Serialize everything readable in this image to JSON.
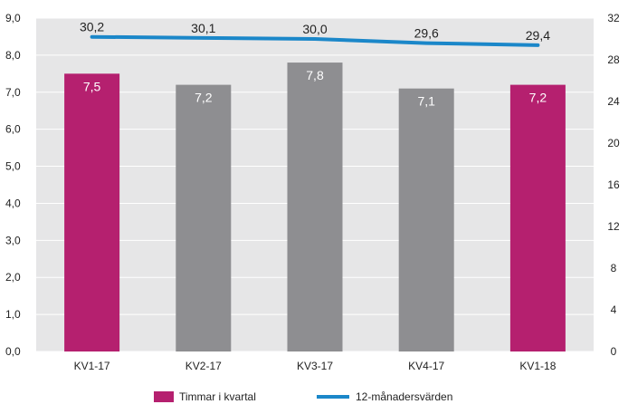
{
  "chart_data": {
    "type": "bar",
    "title": "",
    "categories": [
      "KV1-17",
      "KV2-17",
      "KV3-17",
      "KV4-17",
      "KV1-18"
    ],
    "series": [
      {
        "name": "Timmar i kvartal",
        "kind": "bar",
        "axis": "left",
        "values": [
          7.5,
          7.2,
          7.8,
          7.1,
          7.2
        ],
        "labels": [
          "7,5",
          "7,2",
          "7,8",
          "7,1",
          "7,2"
        ],
        "bar_colors": [
          "#b5206f",
          "#8e8e91",
          "#8e8e91",
          "#8e8e91",
          "#b5206f"
        ],
        "legend_color": "#b5206f"
      },
      {
        "name": "12-månadersvärden",
        "kind": "line",
        "axis": "right",
        "values": [
          30.2,
          30.1,
          30.0,
          29.6,
          29.4
        ],
        "labels": [
          "30,2",
          "30,1",
          "30,0",
          "29,6",
          "29,4"
        ],
        "color": "#1b87c9"
      }
    ],
    "y_left": {
      "range": [
        0,
        9
      ],
      "ticks": [
        0,
        1,
        2,
        3,
        4,
        5,
        6,
        7,
        8,
        9
      ],
      "tick_labels": [
        "0,0",
        "1,0",
        "2,0",
        "3,0",
        "4,0",
        "5,0",
        "6,0",
        "7,0",
        "8,0",
        "9,0"
      ]
    },
    "y_right": {
      "range": [
        0,
        32
      ],
      "ticks": [
        0,
        4,
        8,
        12,
        16,
        20,
        24,
        28,
        32
      ],
      "tick_labels": [
        "0",
        "4",
        "8",
        "12",
        "16",
        "20",
        "24",
        "28",
        "32"
      ]
    },
    "grid": true,
    "legend": {
      "placement": "bottom"
    },
    "colors": {
      "plot_background": "#e6e6e7",
      "grid": "#ffffff",
      "text": "#222222",
      "bar_label": "#ffffff"
    }
  }
}
